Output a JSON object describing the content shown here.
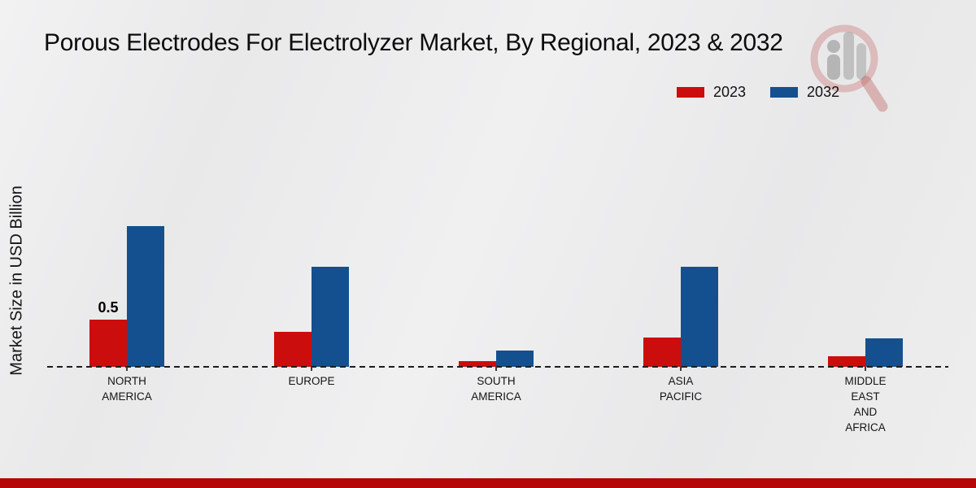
{
  "title": "Porous Electrodes For Electrolyzer Market, By Regional, 2023 & 2032",
  "ylabel": "Market Size in USD Billion",
  "legend": {
    "items": [
      {
        "label": "2023",
        "color": "#cc0d0d"
      },
      {
        "label": "2032",
        "color": "#14508f"
      }
    ]
  },
  "chart_data": {
    "type": "bar",
    "title": "Porous Electrodes For Electrolyzer Market, By Regional, 2023 & 2032",
    "xlabel": "",
    "ylabel": "Market Size in USD Billion",
    "categories": [
      "NORTH AMERICA",
      "EUROPE",
      "SOUTH AMERICA",
      "ASIA PACIFIC",
      "MIDDLE EAST AND AFRICA"
    ],
    "series": [
      {
        "name": "2023",
        "color": "#cc0d0d",
        "values": [
          0.5,
          0.37,
          0.06,
          0.31,
          0.11
        ]
      },
      {
        "name": "2032",
        "color": "#14508f",
        "values": [
          1.5,
          1.07,
          0.17,
          1.07,
          0.3
        ]
      }
    ],
    "data_labels": [
      {
        "category_index": 0,
        "series_index": 0,
        "text": "0.5"
      }
    ],
    "ylim": [
      0,
      1.75
    ],
    "grid": false,
    "axis_line_style": "dashed",
    "legend_position": "top-right"
  },
  "footer": {
    "accent_color": "#b50707"
  }
}
